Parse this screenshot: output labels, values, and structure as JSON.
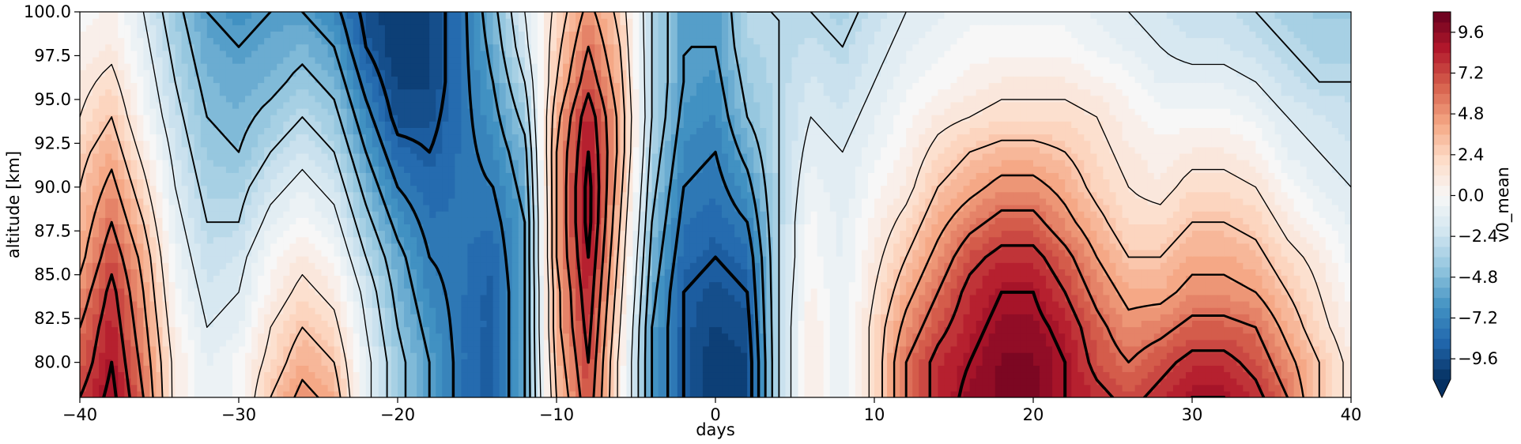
{
  "chart_data": {
    "type": "heatmap",
    "title": "",
    "xlabel": "days",
    "ylabel": "altitude [km]",
    "colorbar_label": "v0_mean",
    "colormap": "RdBu_r",
    "xlim": [
      -40,
      40
    ],
    "ylim": [
      78,
      100
    ],
    "x_ticks": [
      -40,
      -30,
      -20,
      -10,
      0,
      10,
      20,
      30,
      40
    ],
    "x_tick_labels": [
      "−40",
      "−30",
      "−20",
      "−10",
      "0",
      "10",
      "20",
      "30",
      "40"
    ],
    "y_ticks": [
      80.0,
      82.5,
      85.0,
      87.5,
      90.0,
      92.5,
      95.0,
      97.5,
      100.0
    ],
    "y_tick_labels": [
      "80.0",
      "82.5",
      "85.0",
      "87.5",
      "90.0",
      "92.5",
      "95.0",
      "97.5",
      "100.0"
    ],
    "colorbar_range": [
      -10.8,
      10.8
    ],
    "colorbar_extend": "min",
    "colorbar_ticks": [
      -9.6,
      -7.2,
      -4.8,
      -2.4,
      0.0,
      2.4,
      4.8,
      7.2,
      9.6
    ],
    "colorbar_tick_labels": [
      "−9.6",
      "−7.2",
      "−4.8",
      "−2.4",
      "0.0",
      "2.4",
      "4.8",
      "7.2",
      "9.6"
    ],
    "contour_overlay": "black contour lines of increasing line width",
    "x": [
      -40,
      -38,
      -36,
      -34,
      -32,
      -30,
      -28,
      -26,
      -24,
      -22,
      -20,
      -18,
      -16,
      -14,
      -12,
      -10,
      -8,
      -6,
      -4,
      -2,
      0,
      2,
      4,
      6,
      8,
      10,
      12,
      14,
      16,
      18,
      20,
      22,
      24,
      26,
      28,
      30,
      32,
      34,
      36,
      38,
      40
    ],
    "y": [
      78,
      80,
      82,
      84,
      86,
      88,
      90,
      92,
      94,
      96,
      98,
      100
    ],
    "values": [
      [
        7.5,
        9.5,
        6,
        1,
        -1,
        0,
        3,
        5,
        4,
        -1,
        -4,
        -6,
        -8,
        -9,
        -6,
        3,
        7,
        1,
        -6,
        -9,
        -10.5,
        -10,
        -3,
        1,
        -1,
        2,
        6,
        8,
        9.5,
        10,
        10,
        9,
        8,
        7,
        8,
        9,
        9,
        8,
        6,
        3,
        1
      ],
      [
        6.5,
        9,
        5.5,
        1,
        -1,
        0,
        2,
        4,
        3,
        -1,
        -4,
        -6,
        -8,
        -9,
        -6,
        3.5,
        7.5,
        1,
        -6,
        -9,
        -10.5,
        -10,
        -3,
        1,
        -1,
        2,
        6,
        8,
        9,
        10,
        10,
        9,
        7,
        6,
        7,
        8,
        8,
        7,
        5,
        3,
        1
      ],
      [
        6,
        8.5,
        5,
        0.5,
        -1.5,
        -1,
        1.5,
        3,
        2,
        -1.5,
        -4.5,
        -6.5,
        -8,
        -9,
        -6,
        4,
        8,
        1.5,
        -6,
        -9,
        -10,
        -9.5,
        -3,
        1,
        -1,
        2,
        5,
        7,
        8.5,
        9.5,
        9.5,
        8.5,
        6.5,
        5,
        5.5,
        6.5,
        6.5,
        6,
        4,
        2,
        0.5
      ],
      [
        5,
        8,
        4.5,
        0,
        -2,
        -1.5,
        0.5,
        2,
        1,
        -2,
        -5,
        -7,
        -8,
        -9,
        -6,
        4,
        8.5,
        2,
        -5.5,
        -9,
        -9.5,
        -9,
        -3,
        0.5,
        -1,
        1.5,
        4,
        6,
        8,
        9,
        9,
        7.5,
        5.5,
        4,
        4,
        5,
        5,
        4.5,
        3,
        1.5,
        0
      ],
      [
        4,
        7,
        4,
        -0.5,
        -2.5,
        -2,
        0,
        1,
        0,
        -3,
        -5.5,
        -7.5,
        -8,
        -8.5,
        -6,
        4.5,
        9,
        2.5,
        -5,
        -8.5,
        -9,
        -8.5,
        -3,
        0,
        -1,
        1,
        3,
        5,
        7,
        8,
        8,
        6.5,
        4.5,
        3,
        3,
        4,
        4,
        3.5,
        2,
        1,
        -0.5
      ],
      [
        3.5,
        6,
        3,
        -1,
        -3,
        -3,
        -1,
        0,
        -1,
        -4,
        -6.5,
        -8,
        -8,
        -8,
        -6,
        4.5,
        9.5,
        3,
        -4.5,
        -8,
        -8.5,
        -7.5,
        -3,
        0,
        -1,
        0.5,
        2,
        4,
        5.5,
        6.5,
        6.5,
        5,
        3.5,
        2,
        2,
        3,
        3,
        2.5,
        1,
        0,
        -1
      ],
      [
        3,
        5,
        2,
        -1.5,
        -3.5,
        -3.5,
        -2,
        -1,
        -2,
        -5,
        -7.5,
        -8.5,
        -8,
        -7.5,
        -5.5,
        4.5,
        9.5,
        3.5,
        -4,
        -7.5,
        -8,
        -6.5,
        -3,
        -0.5,
        -1.5,
        0,
        1,
        3,
        4,
        5,
        5,
        4,
        2.5,
        1.5,
        1,
        2,
        2,
        1.5,
        0,
        -1,
        -1.5
      ],
      [
        2.5,
        4,
        1,
        -2,
        -4,
        -4.5,
        -3,
        -2,
        -3,
        -6,
        -8.5,
        -9,
        -8,
        -7,
        -5,
        4.5,
        9,
        4,
        -3.5,
        -7,
        -7.5,
        -5.5,
        -3,
        -1,
        -1.5,
        -0.5,
        0.5,
        2,
        3,
        3.5,
        3.5,
        3,
        2,
        1,
        0.5,
        1,
        1,
        0.5,
        -1,
        -1.5,
        -2
      ],
      [
        1.5,
        3,
        0,
        -2.5,
        -4.5,
        -5,
        -4,
        -3,
        -4,
        -7,
        -9.5,
        -9.5,
        -8,
        -6.5,
        -4,
        4,
        8.5,
        4,
        -3,
        -6.5,
        -7,
        -4.5,
        -3,
        -1.5,
        -2,
        -1,
        0,
        1,
        1.5,
        2,
        2,
        2,
        1.5,
        0.5,
        0,
        0,
        0,
        -0.5,
        -1.5,
        -2,
        -2.5
      ],
      [
        1,
        2,
        -0.5,
        -3,
        -5,
        -5.5,
        -5,
        -4,
        -5,
        -8,
        -10,
        -10,
        -8,
        -6,
        -3,
        3,
        7,
        3.5,
        -3,
        -6,
        -6.5,
        -4,
        -3,
        -2,
        -2.5,
        -1.5,
        -0.5,
        0,
        0.5,
        1,
        1,
        1,
        0.5,
        0,
        -1,
        -1,
        -1,
        -1.5,
        -2.5,
        -3,
        -3
      ],
      [
        0.5,
        1,
        -1,
        -3.5,
        -5.5,
        -6,
        -5.5,
        -5,
        -6,
        -9,
        -10.5,
        -10,
        -8,
        -5.5,
        -2,
        2.5,
        6,
        3,
        -3,
        -6,
        -6,
        -3.5,
        -3,
        -2.5,
        -3,
        -2,
        -1,
        -0.5,
        0,
        0,
        0,
        0,
        -0.5,
        -1,
        -1.5,
        -2,
        -2,
        -2.5,
        -3,
        -3.5,
        -3.5
      ],
      [
        0,
        0.5,
        -1.5,
        -4,
        -6,
        -6.5,
        -6,
        -6,
        -7,
        -9.5,
        -10.5,
        -10,
        -8,
        -5,
        -1.5,
        2,
        5,
        2.5,
        -3,
        -6,
        -6,
        -3,
        -3,
        -3,
        -3.5,
        -2.5,
        -1.5,
        -1,
        -0.5,
        -0.5,
        -0.5,
        -0.5,
        -1,
        -1.5,
        -2,
        -2.5,
        -2.5,
        -3,
        -3.5,
        -4,
        -4
      ]
    ]
  }
}
